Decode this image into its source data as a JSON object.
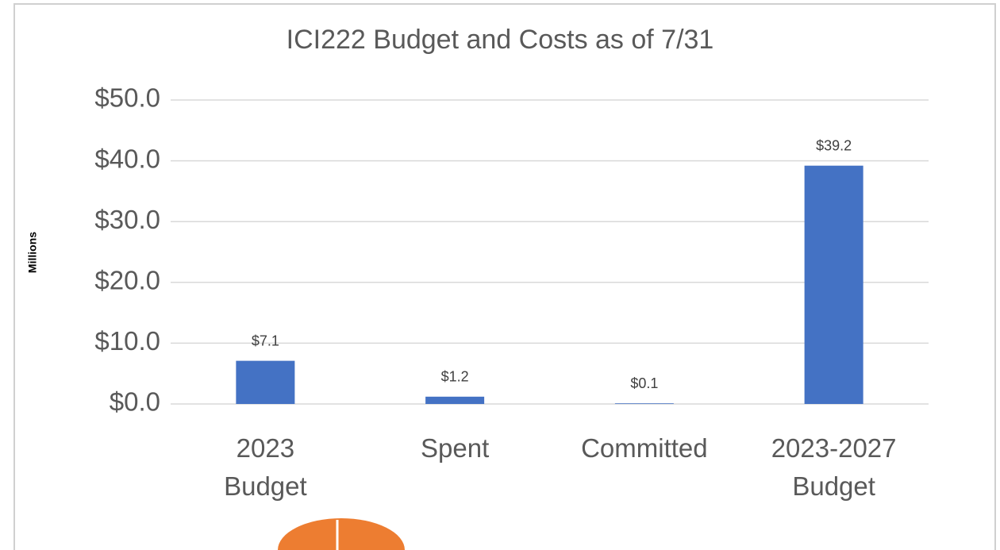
{
  "chart_data": {
    "type": "bar",
    "title": "ICI222 Budget and Costs as of 7/31",
    "y_axis_label": "Millions",
    "categories": [
      "2023 Budget",
      "Spent",
      "Committed",
      "2023-2027 Budget"
    ],
    "values": [
      7.1,
      1.2,
      0.1,
      39.2
    ],
    "value_labels": [
      "$7.1",
      "$1.2",
      "$0.1",
      "$39.2"
    ],
    "color": "#4472c4",
    "ylim": [
      0,
      50
    ],
    "yticks": [
      {
        "value": 0,
        "label": "$0.0"
      },
      {
        "value": 10,
        "label": "$10.0"
      },
      {
        "value": 20,
        "label": "$20.0"
      },
      {
        "value": 30,
        "label": "$30.0"
      },
      {
        "value": 40,
        "label": "$40.0"
      },
      {
        "value": 50,
        "label": "$50.0"
      }
    ],
    "grid": true
  }
}
